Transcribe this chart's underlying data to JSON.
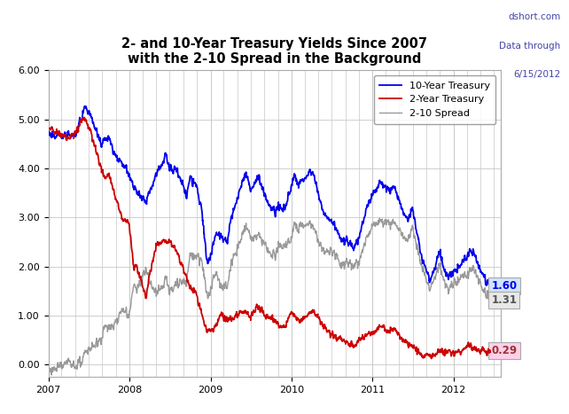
{
  "title_line1": "2- and 10-Year Treasury Yields Since 2007",
  "title_line2": "with the 2-10 Spread in the Background",
  "watermark_line1": "dshort.com",
  "watermark_line2": "Data through",
  "watermark_line3": "6/15/2012",
  "watermark_color": "#4444aa",
  "color_10yr": "#0000EE",
  "color_2yr": "#CC0000",
  "color_spread": "#999999",
  "label_10yr": "10-Year Treasury",
  "label_2yr": "2-Year Treasury",
  "label_spread": "2-10 Spread",
  "end_label_10yr": "1.60",
  "end_label_2yr": "0.29",
  "end_label_spread": "1.31",
  "end_label_10yr_bg": "#d0e4ff",
  "end_label_2yr_bg": "#ffd0e8",
  "end_label_spread_bg": "#e8e8e8",
  "ylim_min": -0.25,
  "ylim_max": 6.0,
  "yticks": [
    0.0,
    1.0,
    2.0,
    3.0,
    4.0,
    5.0,
    6.0
  ],
  "bg_color": "#ffffff",
  "grid_color": "#c8c8c8",
  "border_color": "#3333aa",
  "lw_main": 1.3,
  "lw_spread": 1.0
}
